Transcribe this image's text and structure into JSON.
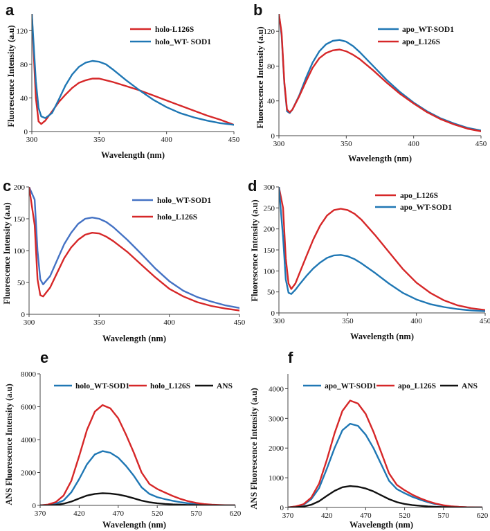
{
  "figure": {
    "description_domain": "fluorescence spectra panels"
  },
  "chart_data": [
    {
      "panel": "a",
      "type": "line",
      "xlabel": "Wavelength (nm)",
      "ylabel": "Fluorescence Intensity (a.u)",
      "xlim": [
        300,
        450
      ],
      "ylim": [
        0,
        140
      ],
      "xticks": [
        300,
        350,
        400,
        450
      ],
      "yticks": [
        0,
        40,
        80,
        120
      ],
      "legend_position": "top-right",
      "series": [
        {
          "name": "holo-L126S",
          "color": "#d62728",
          "x": [
            300,
            303,
            305,
            307,
            310,
            315,
            320,
            325,
            330,
            335,
            340,
            345,
            350,
            355,
            360,
            370,
            380,
            390,
            400,
            410,
            420,
            430,
            440,
            450
          ],
          "y": [
            140,
            40,
            12,
            9,
            13,
            24,
            35,
            44,
            52,
            58,
            61,
            63,
            63,
            61,
            59,
            54,
            49,
            43,
            37,
            31,
            25,
            19,
            14,
            8
          ]
        },
        {
          "name": "holo_WT- SOD1",
          "color": "#1f77b4",
          "x": [
            300,
            303,
            305,
            307,
            310,
            315,
            320,
            325,
            330,
            335,
            340,
            345,
            350,
            355,
            360,
            370,
            380,
            390,
            400,
            410,
            420,
            430,
            440,
            450
          ],
          "y": [
            140,
            60,
            28,
            18,
            16,
            22,
            38,
            55,
            68,
            77,
            82,
            84,
            83,
            80,
            74,
            61,
            49,
            38,
            29,
            22,
            17,
            13,
            10,
            8
          ]
        }
      ]
    },
    {
      "panel": "b",
      "type": "line",
      "xlabel": "Wavelength (nm)",
      "ylabel": "Fluorescence Intensity (a.u)",
      "xlim": [
        300,
        450
      ],
      "ylim": [
        0,
        140
      ],
      "xticks": [
        300,
        350,
        400,
        450
      ],
      "yticks": [
        0,
        40,
        80,
        120
      ],
      "legend_position": "top-right",
      "series": [
        {
          "name": "apo_WT-SOD1",
          "color": "#1f77b4",
          "x": [
            300,
            302,
            304,
            306,
            308,
            310,
            315,
            320,
            325,
            330,
            335,
            340,
            345,
            350,
            355,
            360,
            370,
            380,
            390,
            400,
            410,
            420,
            430,
            440,
            450
          ],
          "y": [
            140,
            115,
            60,
            28,
            26,
            30,
            46,
            66,
            84,
            97,
            105,
            109,
            110,
            108,
            103,
            96,
            80,
            64,
            50,
            38,
            28,
            20,
            14,
            9,
            6
          ]
        },
        {
          "name": "apo_L126S",
          "color": "#d62728",
          "x": [
            300,
            302,
            304,
            306,
            308,
            310,
            315,
            320,
            325,
            330,
            335,
            340,
            345,
            350,
            355,
            360,
            370,
            380,
            390,
            400,
            410,
            420,
            430,
            440,
            450
          ],
          "y": [
            140,
            118,
            62,
            30,
            27,
            30,
            45,
            62,
            78,
            89,
            95,
            98,
            99,
            97,
            93,
            88,
            75,
            61,
            48,
            37,
            27,
            19,
            13,
            8,
            5
          ]
        }
      ]
    },
    {
      "panel": "c",
      "type": "line",
      "xlabel": "Wavelength (nm)",
      "ylabel": "Fluorescence Intensity (a.u)",
      "xlim": [
        300,
        450
      ],
      "ylim": [
        0,
        200
      ],
      "xticks": [
        300,
        350,
        400,
        450
      ],
      "yticks": [
        0,
        50,
        100,
        150,
        200
      ],
      "legend_position": "top-right",
      "series": [
        {
          "name": "holo_WT-SOD1",
          "color": "#4472c4",
          "x": [
            300,
            304,
            306,
            308,
            310,
            315,
            320,
            325,
            330,
            335,
            340,
            345,
            350,
            355,
            360,
            370,
            380,
            390,
            400,
            410,
            420,
            430,
            440,
            450
          ],
          "y": [
            200,
            180,
            100,
            55,
            47,
            60,
            85,
            110,
            128,
            142,
            150,
            152,
            150,
            145,
            137,
            117,
            95,
            72,
            52,
            37,
            27,
            20,
            14,
            10
          ]
        },
        {
          "name": "holo_L126S",
          "color": "#d62728",
          "x": [
            300,
            304,
            306,
            308,
            310,
            315,
            320,
            325,
            330,
            335,
            340,
            345,
            350,
            355,
            360,
            370,
            380,
            390,
            400,
            410,
            420,
            430,
            440,
            450
          ],
          "y": [
            200,
            140,
            55,
            30,
            28,
            42,
            65,
            88,
            105,
            117,
            125,
            128,
            127,
            122,
            115,
            98,
            78,
            58,
            40,
            28,
            19,
            13,
            9,
            6
          ]
        }
      ]
    },
    {
      "panel": "d",
      "type": "line",
      "xlabel": "Wavelength (nm)",
      "ylabel": "Fluorescence Intensity (a.u)",
      "xlim": [
        300,
        450
      ],
      "ylim": [
        0,
        300
      ],
      "xticks": [
        300,
        350,
        400,
        450
      ],
      "yticks": [
        0,
        50,
        100,
        150,
        200,
        250,
        300
      ],
      "legend_position": "top-right",
      "series": [
        {
          "name": "apo_L126S",
          "color": "#d62728",
          "x": [
            300,
            303,
            305,
            307,
            309,
            312,
            315,
            320,
            325,
            330,
            335,
            340,
            345,
            350,
            355,
            360,
            370,
            380,
            390,
            400,
            410,
            420,
            430,
            440,
            450
          ],
          "y": [
            300,
            250,
            130,
            70,
            57,
            70,
            95,
            135,
            175,
            208,
            232,
            245,
            248,
            245,
            236,
            222,
            185,
            145,
            105,
            72,
            48,
            30,
            18,
            11,
            7
          ]
        },
        {
          "name": "apo_WT-SOD1",
          "color": "#1f77b4",
          "x": [
            300,
            303,
            305,
            307,
            309,
            312,
            315,
            320,
            325,
            330,
            335,
            340,
            345,
            350,
            355,
            360,
            370,
            380,
            390,
            400,
            410,
            420,
            430,
            440,
            450
          ],
          "y": [
            300,
            180,
            80,
            48,
            45,
            55,
            68,
            88,
            106,
            120,
            131,
            137,
            138,
            135,
            128,
            118,
            95,
            70,
            48,
            32,
            21,
            14,
            9,
            6,
            4
          ]
        }
      ]
    },
    {
      "panel": "e",
      "type": "line",
      "xlabel": "Wavelength (nm)",
      "ylabel": "ANS Fluorescence Intensity (a.u)",
      "xlim": [
        370,
        620
      ],
      "ylim": [
        0,
        8000
      ],
      "xticks": [
        370,
        420,
        470,
        520,
        570,
        620
      ],
      "yticks": [
        0,
        2000,
        4000,
        6000,
        8000
      ],
      "legend_position": "top",
      "series": [
        {
          "name": "holo_WT-SOD1",
          "color": "#1f77b4",
          "x": [
            370,
            380,
            390,
            400,
            410,
            420,
            430,
            440,
            450,
            460,
            470,
            480,
            490,
            500,
            510,
            520,
            530,
            540,
            550,
            560,
            570,
            580,
            590,
            600,
            610,
            620
          ],
          "y": [
            0,
            30,
            100,
            300,
            800,
            1600,
            2500,
            3100,
            3300,
            3200,
            2900,
            2400,
            1800,
            1100,
            700,
            500,
            380,
            280,
            190,
            120,
            70,
            40,
            20,
            10,
            5,
            0
          ]
        },
        {
          "name": "holo_L126S",
          "color": "#d62728",
          "x": [
            370,
            380,
            390,
            400,
            410,
            420,
            430,
            440,
            450,
            460,
            470,
            480,
            490,
            500,
            510,
            520,
            530,
            540,
            550,
            560,
            570,
            580,
            590,
            600,
            610,
            620
          ],
          "y": [
            0,
            50,
            200,
            600,
            1500,
            3000,
            4600,
            5700,
            6100,
            5900,
            5300,
            4300,
            3200,
            2000,
            1300,
            1000,
            780,
            570,
            390,
            250,
            150,
            80,
            40,
            20,
            10,
            0
          ]
        },
        {
          "name": "ANS",
          "color": "#111111",
          "x": [
            370,
            380,
            390,
            400,
            410,
            420,
            430,
            440,
            450,
            460,
            470,
            480,
            490,
            500,
            510,
            520,
            530,
            540,
            550,
            560,
            570,
            580,
            590,
            600,
            610,
            620
          ],
          "y": [
            0,
            10,
            30,
            100,
            230,
            420,
            600,
            700,
            740,
            720,
            660,
            560,
            430,
            290,
            190,
            130,
            90,
            60,
            40,
            25,
            15,
            8,
            4,
            2,
            1,
            0
          ]
        }
      ]
    },
    {
      "panel": "f",
      "type": "line",
      "xlabel": "Wavelength (nm)",
      "ylabel": "ANS Fluorescence Intensity (a.u)",
      "xlim": [
        370,
        620
      ],
      "ylim": [
        0,
        4500
      ],
      "xticks": [
        370,
        420,
        470,
        520,
        570,
        620
      ],
      "yticks": [
        0,
        1000,
        2000,
        3000,
        4000
      ],
      "legend_position": "top",
      "series": [
        {
          "name": "apo_WT-SOD1",
          "color": "#1f77b4",
          "x": [
            370,
            380,
            390,
            400,
            410,
            420,
            430,
            440,
            450,
            460,
            470,
            480,
            490,
            500,
            510,
            520,
            530,
            540,
            550,
            560,
            570,
            580,
            590,
            600,
            610,
            620
          ],
          "y": [
            0,
            30,
            90,
            280,
            650,
            1300,
            2000,
            2600,
            2820,
            2750,
            2450,
            2000,
            1450,
            900,
            620,
            480,
            360,
            260,
            180,
            110,
            65,
            35,
            18,
            8,
            3,
            0
          ]
        },
        {
          "name": "apo_L126S",
          "color": "#d62728",
          "x": [
            370,
            380,
            390,
            400,
            410,
            420,
            430,
            440,
            450,
            460,
            470,
            480,
            490,
            500,
            510,
            520,
            530,
            540,
            550,
            560,
            570,
            580,
            590,
            600,
            610,
            620
          ],
          "y": [
            0,
            35,
            110,
            330,
            800,
            1600,
            2500,
            3250,
            3600,
            3500,
            3150,
            2550,
            1850,
            1150,
            760,
            580,
            430,
            310,
            210,
            130,
            75,
            40,
            20,
            9,
            4,
            0
          ]
        },
        {
          "name": "ANS",
          "color": "#111111",
          "x": [
            370,
            380,
            390,
            400,
            410,
            420,
            430,
            440,
            450,
            460,
            470,
            480,
            490,
            500,
            510,
            520,
            530,
            540,
            550,
            560,
            570,
            580,
            590,
            600,
            610,
            620
          ],
          "y": [
            0,
            10,
            30,
            90,
            210,
            390,
            560,
            680,
            720,
            700,
            640,
            540,
            410,
            280,
            180,
            120,
            80,
            55,
            35,
            22,
            13,
            7,
            3,
            2,
            1,
            0
          ]
        }
      ]
    }
  ]
}
